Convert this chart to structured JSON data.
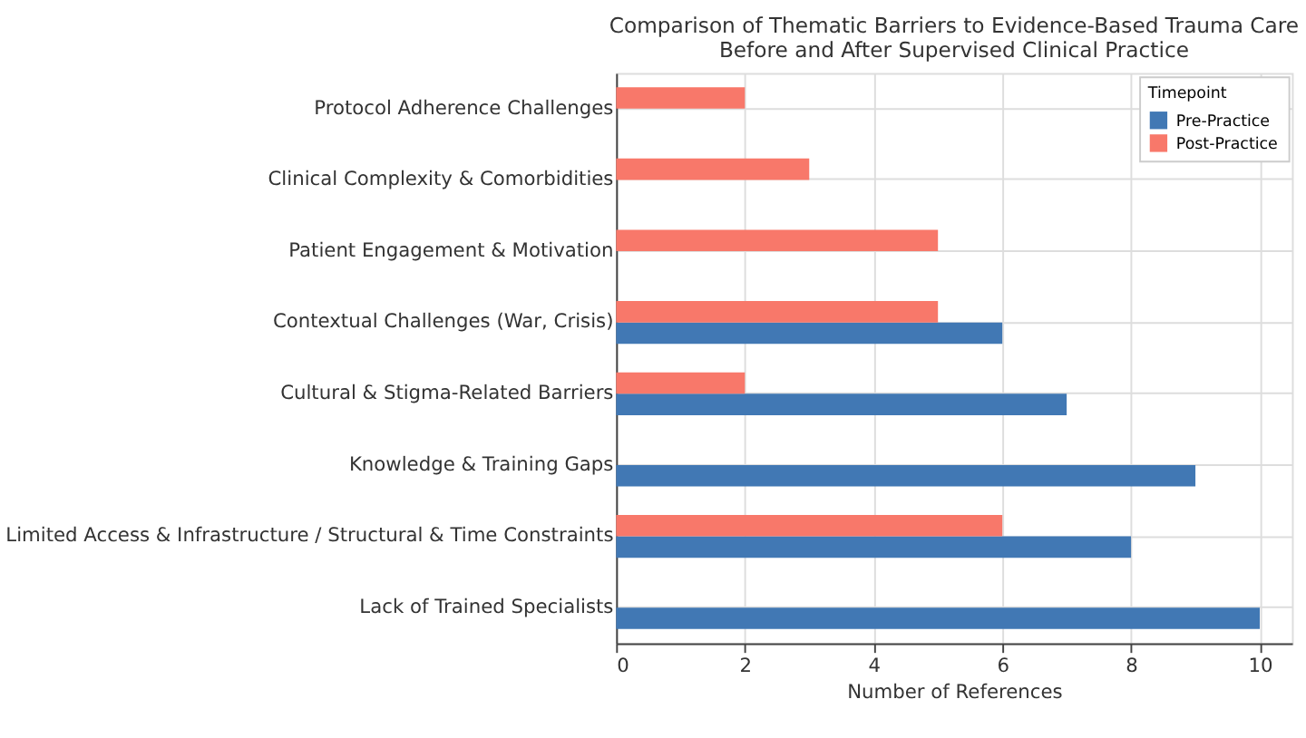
{
  "chart_data": {
    "type": "bar",
    "orientation": "horizontal",
    "title": "Comparison of Thematic Barriers to Evidence-Based Trauma Care\nBefore and After Supervised Clinical Practice",
    "xlabel": "Number of References",
    "legend_title": "Timepoint",
    "categories": [
      "Protocol Adherence Challenges",
      "Clinical Complexity & Comorbidities",
      "Patient Engagement & Motivation",
      "Contextual Challenges (War, Crisis)",
      "Cultural & Stigma-Related Barriers",
      "Knowledge & Training Gaps",
      "Limited Access & Infrastructure / Structural & Time Constraints",
      "Lack of Trained Specialists"
    ],
    "series": [
      {
        "name": "Pre-Practice",
        "color": "#4178b4",
        "values": [
          0,
          0,
          0,
          6,
          7,
          9,
          8,
          10
        ]
      },
      {
        "name": "Post-Practice",
        "color": "#f8786a",
        "values": [
          2,
          3,
          5,
          5,
          2,
          0,
          6,
          0
        ]
      }
    ],
    "xlim": [
      0,
      10.5
    ],
    "xticks": [
      0,
      2,
      4,
      6,
      8,
      10
    ],
    "grid": true,
    "legend": "top right"
  }
}
